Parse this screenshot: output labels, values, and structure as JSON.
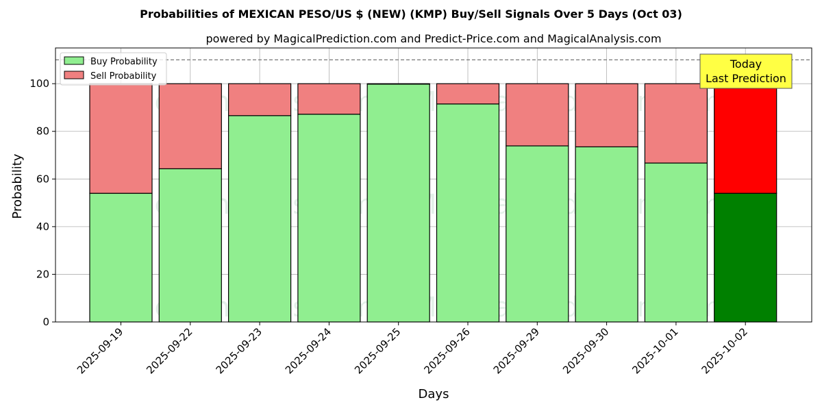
{
  "chart_data": {
    "type": "bar",
    "stacked": true,
    "title": "Probabilities of MEXICAN PESO/US $ (NEW) (KMP) Buy/Sell Signals Over 5 Days (Oct 03)",
    "subtitle": "powered by MagicalPrediction.com and Predict-Price.com and MagicalAnalysis.com",
    "xlabel": "Days",
    "ylabel": "Probability",
    "ylim": [
      0,
      115
    ],
    "yticks": [
      0,
      20,
      40,
      60,
      80,
      100
    ],
    "grid": true,
    "legend_placement": "top-left",
    "reference_line": 110,
    "categories": [
      "2025-09-19",
      "2025-09-22",
      "2025-09-23",
      "2025-09-24",
      "2025-09-25",
      "2025-09-26",
      "2025-09-29",
      "2025-09-30",
      "2025-10-01",
      "2025-10-02"
    ],
    "series": [
      {
        "name": "Buy Probability",
        "values": [
          54,
          64.3,
          86.6,
          87.2,
          99.8,
          91.5,
          73.9,
          73.5,
          66.7,
          54
        ],
        "color": "#90ee90",
        "highlight_color": "#008000"
      },
      {
        "name": "Sell Probability",
        "values": [
          46,
          35.7,
          13.4,
          12.8,
          0.2,
          8.5,
          26.1,
          26.5,
          33.3,
          46
        ],
        "color": "#f08080",
        "highlight_color": "#ff0000"
      }
    ],
    "highlight_index": 9,
    "annotation": {
      "text_line1": "Today",
      "text_line2": "Last Prediction",
      "color": "#ffff44"
    },
    "watermarks": [
      "MagicalAnalysis.com",
      "MagicalPrediction.com"
    ]
  }
}
